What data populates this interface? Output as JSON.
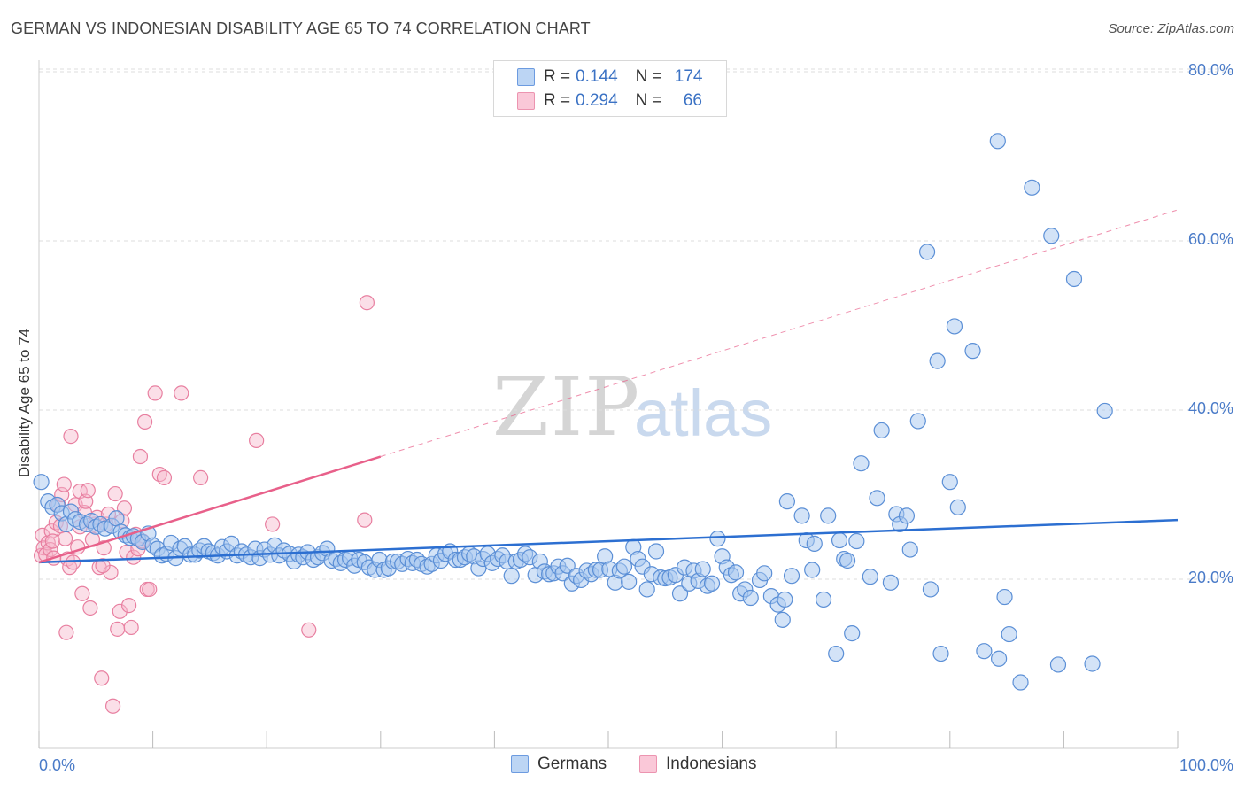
{
  "header": {
    "title": "GERMAN VS INDONESIAN DISABILITY AGE 65 TO 74 CORRELATION CHART",
    "source": "Source: ZipAtlas.com"
  },
  "watermark": {
    "zip": "ZIP",
    "atlas": "atlas"
  },
  "legend": {
    "rows": [
      {
        "r_label": "R =",
        "r_value": "0.144",
        "n_label": "N =",
        "n_value": "174"
      },
      {
        "r_label": "R =",
        "r_value": "0.294",
        "n_label": "N =",
        "n_value": "66"
      }
    ]
  },
  "bottom_legend": {
    "germans": "Germans",
    "indonesians": "Indonesians"
  },
  "colors": {
    "german_fill": "#a8c8f0",
    "german_stroke": "#5b8fd6",
    "german_line": "#2c6fd1",
    "indonesian_fill": "#f7b8cc",
    "indonesian_stroke": "#e87fa0",
    "indonesian_line": "#e8608a",
    "grid": "#dddddd",
    "tick_label": "#4a7bc8"
  },
  "chart_data": {
    "type": "scatter",
    "title": "GERMAN VS INDONESIAN DISABILITY AGE 65 TO 74 CORRELATION CHART",
    "xlabel": "",
    "ylabel": "Disability Age 65 to 74",
    "xlim": [
      0,
      100
    ],
    "ylim": [
      0,
      85
    ],
    "x_tick_labels": [
      "0.0%",
      "100.0%"
    ],
    "y_ticks": [
      20,
      40,
      60,
      80
    ],
    "y_tick_labels": [
      "20.0%",
      "40.0%",
      "60.0%",
      "80.0%"
    ],
    "grid": "horizontal dashed",
    "legend_position": "top-center",
    "series": [
      {
        "name": "Germans",
        "r": 0.144,
        "n": 174,
        "trend": {
          "x": [
            0,
            100
          ],
          "y": [
            22.0,
            27.0
          ],
          "style": "solid"
        },
        "points": [
          [
            0.2,
            31.5
          ],
          [
            0.8,
            29.2
          ],
          [
            1.2,
            28.5
          ],
          [
            1.6,
            28.8
          ],
          [
            2.0,
            27.8
          ],
          [
            2.4,
            26.5
          ],
          [
            2.8,
            28.0
          ],
          [
            3.2,
            27.1
          ],
          [
            3.6,
            26.8
          ],
          [
            4.2,
            26.5
          ],
          [
            4.6,
            26.9
          ],
          [
            5.0,
            26.2
          ],
          [
            5.4,
            26.5
          ],
          [
            5.8,
            26.0
          ],
          [
            6.4,
            26.3
          ],
          [
            6.8,
            27.2
          ],
          [
            7.2,
            25.6
          ],
          [
            7.6,
            25.2
          ],
          [
            8.0,
            24.9
          ],
          [
            8.3,
            25.1
          ],
          [
            8.7,
            24.8
          ],
          [
            9.1,
            24.4
          ],
          [
            9.6,
            25.4
          ],
          [
            10.0,
            24.0
          ],
          [
            10.4,
            23.6
          ],
          [
            10.8,
            22.8
          ],
          [
            11.2,
            23.0
          ],
          [
            11.6,
            24.3
          ],
          [
            12.0,
            22.5
          ],
          [
            12.4,
            23.6
          ],
          [
            12.8,
            23.9
          ],
          [
            13.3,
            22.9
          ],
          [
            13.7,
            22.9
          ],
          [
            14.1,
            23.4
          ],
          [
            14.5,
            23.9
          ],
          [
            14.9,
            23.3
          ],
          [
            15.3,
            23.1
          ],
          [
            15.7,
            22.8
          ],
          [
            16.1,
            23.8
          ],
          [
            16.5,
            23.3
          ],
          [
            16.9,
            24.2
          ],
          [
            17.4,
            22.8
          ],
          [
            17.8,
            23.3
          ],
          [
            18.2,
            22.9
          ],
          [
            18.6,
            22.6
          ],
          [
            19.0,
            23.6
          ],
          [
            19.4,
            22.5
          ],
          [
            19.8,
            23.5
          ],
          [
            20.3,
            22.9
          ],
          [
            20.7,
            24.0
          ],
          [
            21.1,
            22.8
          ],
          [
            21.5,
            23.4
          ],
          [
            22.0,
            23.0
          ],
          [
            22.4,
            22.1
          ],
          [
            22.8,
            22.9
          ],
          [
            23.2,
            22.6
          ],
          [
            23.6,
            23.2
          ],
          [
            24.1,
            22.3
          ],
          [
            24.5,
            22.6
          ],
          [
            24.9,
            23.1
          ],
          [
            25.3,
            23.6
          ],
          [
            25.7,
            22.2
          ],
          [
            26.1,
            22.4
          ],
          [
            26.5,
            21.9
          ],
          [
            26.9,
            22.3
          ],
          [
            27.3,
            22.5
          ],
          [
            27.7,
            21.6
          ],
          [
            28.1,
            22.3
          ],
          [
            28.6,
            22.0
          ],
          [
            29.0,
            21.4
          ],
          [
            29.5,
            21.1
          ],
          [
            29.9,
            22.3
          ],
          [
            30.3,
            21.1
          ],
          [
            30.7,
            21.3
          ],
          [
            31.1,
            22.1
          ],
          [
            31.5,
            22.1
          ],
          [
            31.9,
            21.8
          ],
          [
            32.4,
            22.4
          ],
          [
            32.8,
            21.9
          ],
          [
            33.2,
            22.3
          ],
          [
            33.6,
            21.8
          ],
          [
            34.1,
            21.5
          ],
          [
            34.5,
            21.8
          ],
          [
            34.9,
            22.8
          ],
          [
            35.3,
            22.2
          ],
          [
            35.7,
            23.0
          ],
          [
            36.1,
            23.3
          ],
          [
            36.6,
            22.3
          ],
          [
            37.0,
            22.3
          ],
          [
            37.4,
            22.6
          ],
          [
            37.8,
            23.0
          ],
          [
            38.2,
            22.7
          ],
          [
            38.6,
            21.3
          ],
          [
            39.0,
            22.4
          ],
          [
            39.4,
            23.0
          ],
          [
            39.8,
            21.9
          ],
          [
            40.3,
            22.4
          ],
          [
            40.7,
            22.8
          ],
          [
            41.1,
            22.1
          ],
          [
            41.5,
            20.4
          ],
          [
            41.9,
            22.1
          ],
          [
            42.3,
            22.3
          ],
          [
            42.7,
            23.0
          ],
          [
            43.1,
            22.6
          ],
          [
            43.6,
            20.5
          ],
          [
            44.0,
            22.1
          ],
          [
            44.4,
            20.9
          ],
          [
            44.8,
            20.6
          ],
          [
            45.2,
            20.7
          ],
          [
            45.6,
            21.5
          ],
          [
            46.0,
            20.7
          ],
          [
            46.4,
            21.6
          ],
          [
            46.8,
            19.5
          ],
          [
            47.2,
            20.4
          ],
          [
            47.6,
            19.9
          ],
          [
            48.1,
            21.0
          ],
          [
            48.5,
            20.6
          ],
          [
            48.9,
            21.1
          ],
          [
            49.3,
            21.1
          ],
          [
            49.7,
            22.7
          ],
          [
            50.1,
            21.2
          ],
          [
            50.6,
            19.6
          ],
          [
            51.0,
            21.0
          ],
          [
            51.4,
            21.5
          ],
          [
            51.8,
            19.7
          ],
          [
            52.2,
            23.8
          ],
          [
            52.6,
            22.4
          ],
          [
            53.0,
            21.5
          ],
          [
            53.4,
            18.8
          ],
          [
            53.8,
            20.6
          ],
          [
            54.2,
            23.3
          ],
          [
            54.6,
            20.2
          ],
          [
            55.0,
            20.1
          ],
          [
            55.4,
            20.2
          ],
          [
            55.9,
            20.5
          ],
          [
            56.3,
            18.3
          ],
          [
            56.7,
            21.4
          ],
          [
            57.1,
            19.5
          ],
          [
            57.5,
            21.0
          ],
          [
            57.9,
            19.8
          ],
          [
            58.3,
            21.2
          ],
          [
            58.7,
            19.2
          ],
          [
            59.1,
            19.5
          ],
          [
            59.6,
            24.8
          ],
          [
            60.0,
            22.7
          ],
          [
            60.4,
            21.4
          ],
          [
            60.8,
            20.5
          ],
          [
            61.2,
            20.8
          ],
          [
            61.6,
            18.3
          ],
          [
            62.0,
            18.8
          ],
          [
            62.5,
            17.8
          ],
          [
            63.3,
            19.9
          ],
          [
            63.7,
            20.7
          ],
          [
            64.3,
            18.0
          ],
          [
            64.9,
            17.0
          ],
          [
            65.3,
            15.2
          ],
          [
            65.5,
            17.6
          ],
          [
            65.7,
            29.2
          ],
          [
            66.1,
            20.4
          ],
          [
            67.0,
            27.5
          ],
          [
            67.4,
            24.6
          ],
          [
            67.9,
            21.1
          ],
          [
            68.1,
            24.2
          ],
          [
            68.9,
            17.6
          ],
          [
            69.3,
            27.5
          ],
          [
            70.0,
            11.2
          ],
          [
            70.3,
            24.6
          ],
          [
            70.7,
            22.4
          ],
          [
            71.0,
            22.2
          ],
          [
            71.4,
            13.6
          ],
          [
            71.8,
            24.5
          ],
          [
            72.2,
            33.7
          ],
          [
            73.0,
            20.3
          ],
          [
            73.6,
            29.6
          ],
          [
            74.0,
            37.6
          ],
          [
            74.8,
            19.6
          ],
          [
            75.3,
            27.7
          ],
          [
            75.6,
            26.5
          ],
          [
            76.2,
            27.5
          ],
          [
            76.5,
            23.5
          ],
          [
            77.2,
            38.7
          ],
          [
            78.0,
            58.7
          ],
          [
            78.3,
            18.8
          ],
          [
            78.9,
            45.8
          ],
          [
            79.2,
            11.2
          ],
          [
            80.0,
            31.5
          ],
          [
            80.4,
            49.9
          ],
          [
            80.7,
            28.5
          ],
          [
            82.0,
            47.0
          ],
          [
            83.0,
            11.5
          ],
          [
            84.2,
            71.8
          ],
          [
            84.3,
            10.6
          ],
          [
            84.8,
            17.9
          ],
          [
            85.2,
            13.5
          ],
          [
            86.2,
            7.8
          ],
          [
            87.2,
            66.3
          ],
          [
            88.9,
            60.6
          ],
          [
            89.5,
            9.9
          ],
          [
            90.9,
            55.5
          ],
          [
            92.5,
            10.0
          ],
          [
            93.6,
            39.9
          ]
        ]
      },
      {
        "name": "Indonesians",
        "r": 0.294,
        "n": 66,
        "trend": {
          "x": [
            0,
            30
          ],
          "y": [
            22.0,
            34.5
          ],
          "style": "solid then dashed to 100"
        },
        "points": [
          [
            0.2,
            22.8
          ],
          [
            0.3,
            25.2
          ],
          [
            0.4,
            23.7
          ],
          [
            0.6,
            22.9
          ],
          [
            0.8,
            24.3
          ],
          [
            1.0,
            23.5
          ],
          [
            1.1,
            25.7
          ],
          [
            1.2,
            24.5
          ],
          [
            1.3,
            22.5
          ],
          [
            1.5,
            26.7
          ],
          [
            1.7,
            28.8
          ],
          [
            1.9,
            26.3
          ],
          [
            2.0,
            30.0
          ],
          [
            2.2,
            31.2
          ],
          [
            2.3,
            24.8
          ],
          [
            2.5,
            22.4
          ],
          [
            2.7,
            21.4
          ],
          [
            2.8,
            36.9
          ],
          [
            3.0,
            22.0
          ],
          [
            3.2,
            28.8
          ],
          [
            3.4,
            23.8
          ],
          [
            3.6,
            30.4
          ],
          [
            3.8,
            18.3
          ],
          [
            4.0,
            27.9
          ],
          [
            4.1,
            29.2
          ],
          [
            4.3,
            30.5
          ],
          [
            4.5,
            16.6
          ],
          [
            4.7,
            24.7
          ],
          [
            4.9,
            26.5
          ],
          [
            5.1,
            27.3
          ],
          [
            5.3,
            21.4
          ],
          [
            5.5,
            8.3
          ],
          [
            5.7,
            23.7
          ],
          [
            5.9,
            26.5
          ],
          [
            6.1,
            27.7
          ],
          [
            6.3,
            20.8
          ],
          [
            6.5,
            5.0
          ],
          [
            6.7,
            30.1
          ],
          [
            6.9,
            14.1
          ],
          [
            7.1,
            16.2
          ],
          [
            7.3,
            26.9
          ],
          [
            7.5,
            28.4
          ],
          [
            7.7,
            23.2
          ],
          [
            7.9,
            16.9
          ],
          [
            8.1,
            14.3
          ],
          [
            8.3,
            22.6
          ],
          [
            8.5,
            25.3
          ],
          [
            8.7,
            23.6
          ],
          [
            8.9,
            34.5
          ],
          [
            9.1,
            24.5
          ],
          [
            9.3,
            38.6
          ],
          [
            9.5,
            18.8
          ],
          [
            9.7,
            18.8
          ],
          [
            10.2,
            42.0
          ],
          [
            10.6,
            32.4
          ],
          [
            11.0,
            32.0
          ],
          [
            12.5,
            42.0
          ],
          [
            14.2,
            32.0
          ],
          [
            19.1,
            36.4
          ],
          [
            20.5,
            26.5
          ],
          [
            23.7,
            14.0
          ],
          [
            28.6,
            27.0
          ],
          [
            28.8,
            52.7
          ],
          [
            2.4,
            13.7
          ],
          [
            3.6,
            26.2
          ],
          [
            5.6,
            21.6
          ]
        ]
      }
    ]
  }
}
